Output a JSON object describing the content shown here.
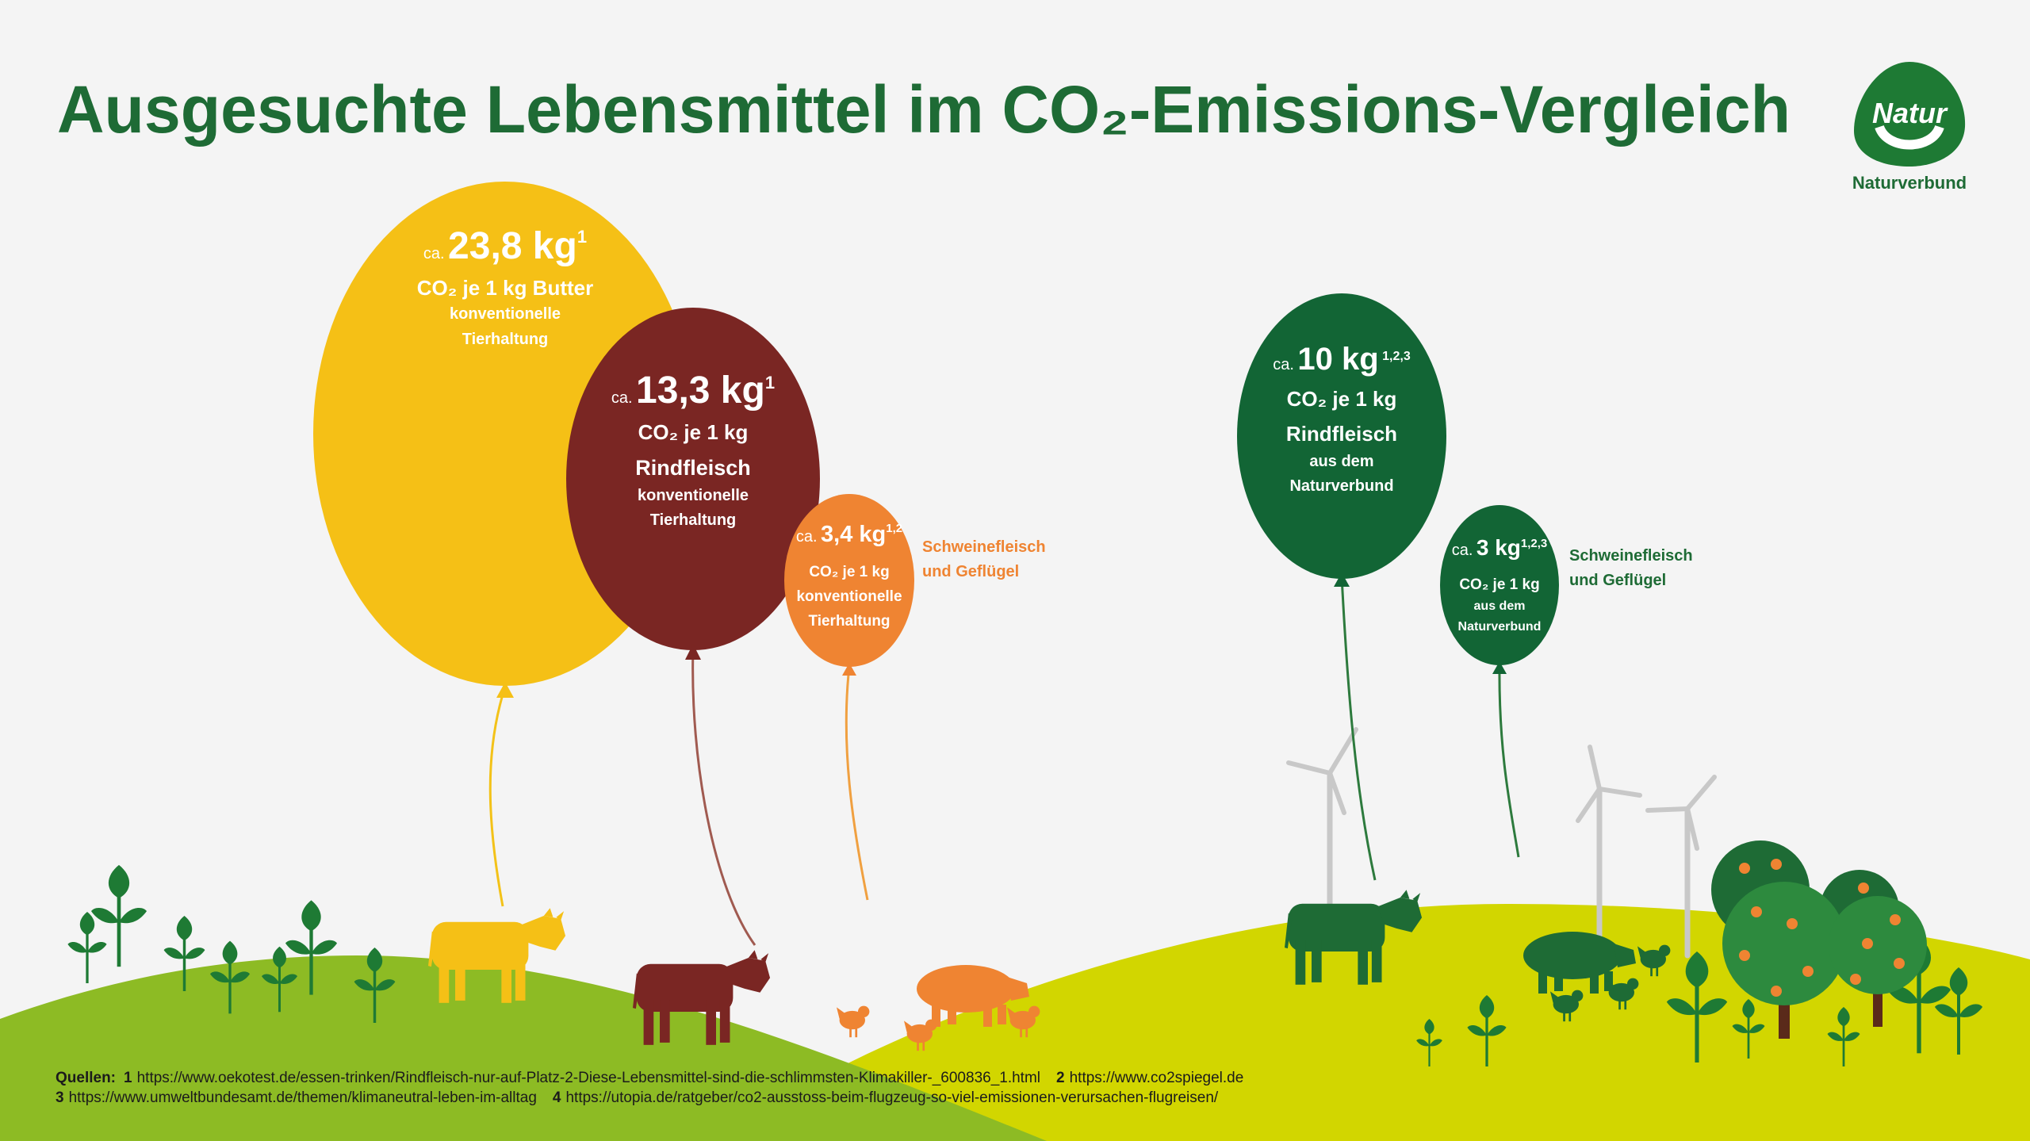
{
  "title": "Ausgesuchte Lebensmittel im CO₂-Emissions-Vergleich",
  "logo": {
    "brand": "Natur",
    "name": "Naturverbund"
  },
  "balloons": [
    {
      "prefix": "ca.",
      "amount": "23,8 kg",
      "footnote": "1",
      "lines": [
        "CO₂ je 1 kg Butter",
        "konventionelle",
        "Tierhaltung"
      ]
    },
    {
      "prefix": "ca.",
      "amount": "13,3 kg",
      "footnote": "1",
      "lines": [
        "CO₂ je 1 kg",
        "Rindfleisch",
        "konventionelle",
        "Tierhaltung"
      ]
    },
    {
      "prefix": "ca.",
      "amount": "3,4 kg",
      "footnote": "1,2",
      "lines": [
        "CO₂ je 1 kg",
        "konventionelle",
        "Tierhaltung"
      ],
      "side_label": [
        "Schweinefleisch",
        "und Geflügel"
      ]
    },
    {
      "prefix": "ca.",
      "amount": "10 kg",
      "footnote": "1,2,3",
      "lines": [
        "CO₂ je 1 kg",
        "Rindfleisch",
        "aus dem",
        "Naturverbund"
      ]
    },
    {
      "prefix": "ca.",
      "amount": "3 kg",
      "footnote": "1,2,3",
      "lines": [
        "CO₂ je 1 kg",
        "aus dem",
        "Naturverbund"
      ],
      "side_label": [
        "Schweinefleisch",
        "und Geflügel"
      ]
    }
  ],
  "sources": {
    "label": "Quellen:",
    "items": [
      {
        "number": "1",
        "url": "https://www.oekotest.de/essen-trinken/Rindfleisch-nur-auf-Platz-2-Diese-Lebensmittel-sind-die-schlimmsten-Klimakiller-_600836_1.html"
      },
      {
        "number": "2",
        "url": "https://www.co2spiegel.de"
      },
      {
        "number": "3",
        "url": "https://www.umweltbundesamt.de/themen/klimaneutral-leben-im-alltag"
      },
      {
        "number": "4",
        "url": "https://utopia.de/ratgeber/co2-ausstoss-beim-flugzeug-so-viel-emissionen-verursachen-flugreisen/"
      }
    ]
  }
}
